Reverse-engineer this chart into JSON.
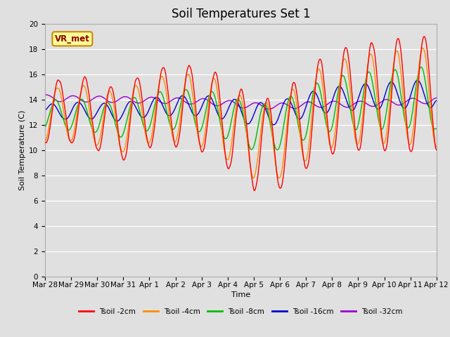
{
  "title": "Soil Temperatures Set 1",
  "xlabel": "Time",
  "ylabel": "Soil Temperature (C)",
  "ylim": [
    0,
    20
  ],
  "yticks": [
    0,
    2,
    4,
    6,
    8,
    10,
    12,
    14,
    16,
    18,
    20
  ],
  "legend_labels": [
    "Tsoil -2cm",
    "Tsoil -4cm",
    "Tsoil -8cm",
    "Tsoil -16cm",
    "Tsoil -32cm"
  ],
  "line_colors": [
    "#ff0000",
    "#ff8c00",
    "#00bb00",
    "#0000cc",
    "#9900cc"
  ],
  "background_color": "#e0e0e0",
  "plot_bg_color": "#e0e0e0",
  "annotation_text": "VR_met",
  "annotation_bg": "#ffff99",
  "annotation_border": "#cc8800",
  "x_tick_labels": [
    "Mar 28",
    "Mar 29",
    "Mar 30",
    "Mar 31",
    "Apr 1",
    "Apr 2",
    "Apr 3",
    "Apr 4",
    "Apr 5",
    "Apr 6",
    "Apr 7",
    "Apr 8",
    "Apr 9",
    "Apr 10",
    "Apr 11",
    "Apr 12"
  ],
  "title_fontsize": 12,
  "axis_fontsize": 8,
  "tick_fontsize": 7.5
}
